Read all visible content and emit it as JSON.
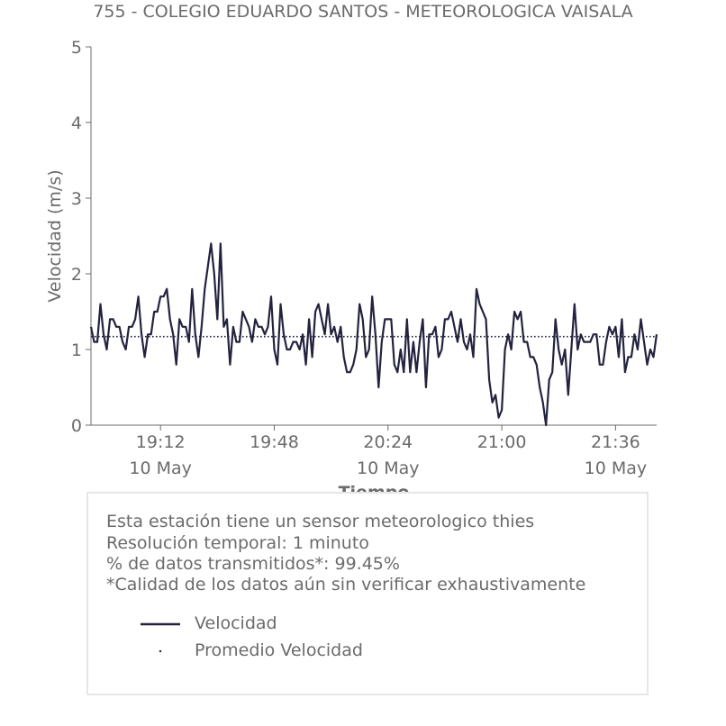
{
  "chart_data": {
    "type": "line",
    "title": "755 - COLEGIO EDUARDO SANTOS - METEOROLOGICA VAISALA",
    "xlabel": "Tiempo",
    "ylabel": "Velocidad (m/s)",
    "ylim": [
      0,
      5
    ],
    "yticks": [
      "0",
      "1",
      "2",
      "3",
      "4",
      "5"
    ],
    "xticks": [
      {
        "time": "19:12",
        "date": "10 May"
      },
      {
        "time": "19:48",
        "date": ""
      },
      {
        "time": "20:24",
        "date": "10 May"
      },
      {
        "time": "21:00",
        "date": ""
      },
      {
        "time": "21:36",
        "date": "10 May"
      }
    ],
    "x_start": "18:50",
    "x_end": "21:49",
    "grid": false,
    "series": [
      {
        "name": "Velocidad",
        "color": "#23233f",
        "style": "solid",
        "x_start": "18:50",
        "step_minutes": 1,
        "values": [
          1.3,
          1.1,
          1.1,
          1.6,
          1.2,
          1.0,
          1.4,
          1.4,
          1.3,
          1.3,
          1.1,
          1.0,
          1.3,
          1.3,
          1.4,
          1.7,
          1.2,
          0.9,
          1.2,
          1.2,
          1.5,
          1.5,
          1.7,
          1.7,
          1.8,
          1.4,
          1.2,
          0.8,
          1.4,
          1.3,
          1.3,
          1.1,
          1.8,
          1.2,
          0.9,
          1.3,
          1.8,
          2.1,
          2.4,
          2.0,
          1.4,
          2.4,
          1.3,
          1.4,
          0.8,
          1.3,
          1.1,
          1.1,
          1.5,
          1.4,
          1.3,
          1.1,
          1.4,
          1.3,
          1.3,
          1.2,
          1.3,
          1.7,
          1.0,
          0.8,
          1.6,
          1.2,
          1.0,
          1.0,
          1.1,
          1.1,
          1.0,
          1.2,
          0.8,
          1.4,
          0.9,
          1.5,
          1.6,
          1.4,
          1.2,
          1.6,
          1.2,
          1.3,
          1.1,
          1.3,
          0.9,
          0.7,
          0.7,
          0.8,
          1.0,
          1.6,
          1.4,
          0.9,
          1.0,
          1.7,
          1.2,
          0.5,
          1.1,
          1.4,
          1.4,
          1.4,
          0.8,
          0.7,
          1.0,
          0.7,
          1.4,
          0.7,
          1.1,
          0.7,
          1.1,
          1.4,
          0.5,
          1.2,
          1.2,
          1.3,
          0.9,
          1.0,
          1.4,
          1.4,
          1.5,
          1.3,
          1.1,
          1.4,
          1.1,
          1.0,
          1.2,
          0.9,
          1.8,
          1.6,
          1.5,
          1.4,
          0.6,
          0.3,
          0.4,
          0.1,
          0.2,
          1.0,
          1.2,
          1.0,
          1.5,
          1.4,
          1.5,
          1.1,
          1.1,
          0.9,
          0.9,
          0.8,
          0.5,
          0.3,
          0.0,
          0.6,
          0.7,
          1.4,
          1.0,
          0.8,
          1.0,
          0.4,
          1.0,
          1.6,
          1.0,
          1.2,
          1.1,
          1.1,
          1.1,
          1.2,
          1.2,
          0.8,
          0.8,
          1.1,
          1.3,
          1.2,
          1.3,
          0.9,
          1.4,
          0.7,
          0.9,
          0.9,
          1.2,
          1.0,
          1.4,
          1.1,
          0.8,
          1.0,
          0.9,
          1.2
        ]
      },
      {
        "name": "Promedio Velocidad",
        "color": "#23233f",
        "style": "dotted",
        "values": [
          1.17
        ]
      }
    ]
  },
  "info": {
    "lines": [
      "Esta estación tiene un sensor meteorologico thies",
      "Resolución temporal: 1 minuto",
      "% de datos transmitidos*: 99.45%",
      "*Calidad de los datos aún sin verificar exhaustivamente"
    ]
  },
  "legend": {
    "items": [
      {
        "label": "Velocidad",
        "style": "solid"
      },
      {
        "label": "Promedio Velocidad",
        "style": "dot"
      }
    ]
  }
}
